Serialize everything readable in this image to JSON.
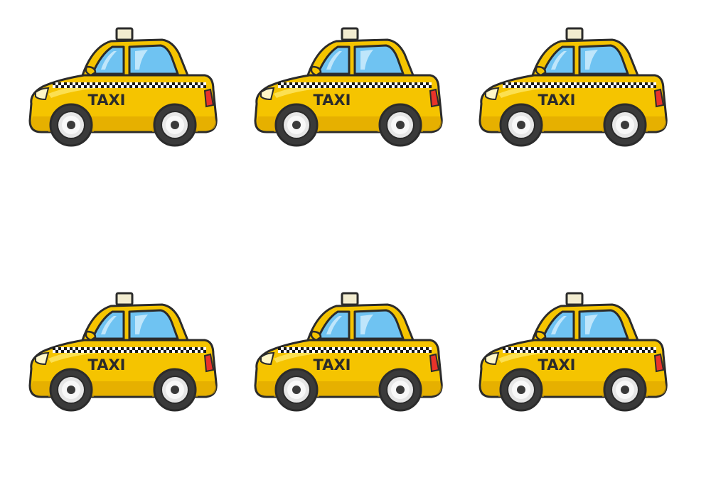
{
  "colors": {
    "body": "#f5c400",
    "body_shadow": "#e0a800",
    "body_highlight": "#fde35a",
    "outline": "#2b2b2b",
    "window": "#6fc3f2",
    "window_shine": "#bfe6fb",
    "roof_sign": "#f2ecd0",
    "tail_light": "#e8332a",
    "tire": "#3a3a3a",
    "hub": "#e6e6e6",
    "checker_dark": "#1a1a1a",
    "checker_light": "#ffffff"
  },
  "taxis": [
    {
      "label": "TAXI",
      "icon": "taxi-car-icon"
    },
    {
      "label": "TAXI",
      "icon": "taxi-car-icon"
    },
    {
      "label": "TAXI",
      "icon": "taxi-car-icon"
    },
    {
      "label": "TAXI",
      "icon": "taxi-car-icon"
    },
    {
      "label": "TAXI",
      "icon": "taxi-car-icon"
    },
    {
      "label": "TAXI",
      "icon": "taxi-car-icon"
    }
  ]
}
